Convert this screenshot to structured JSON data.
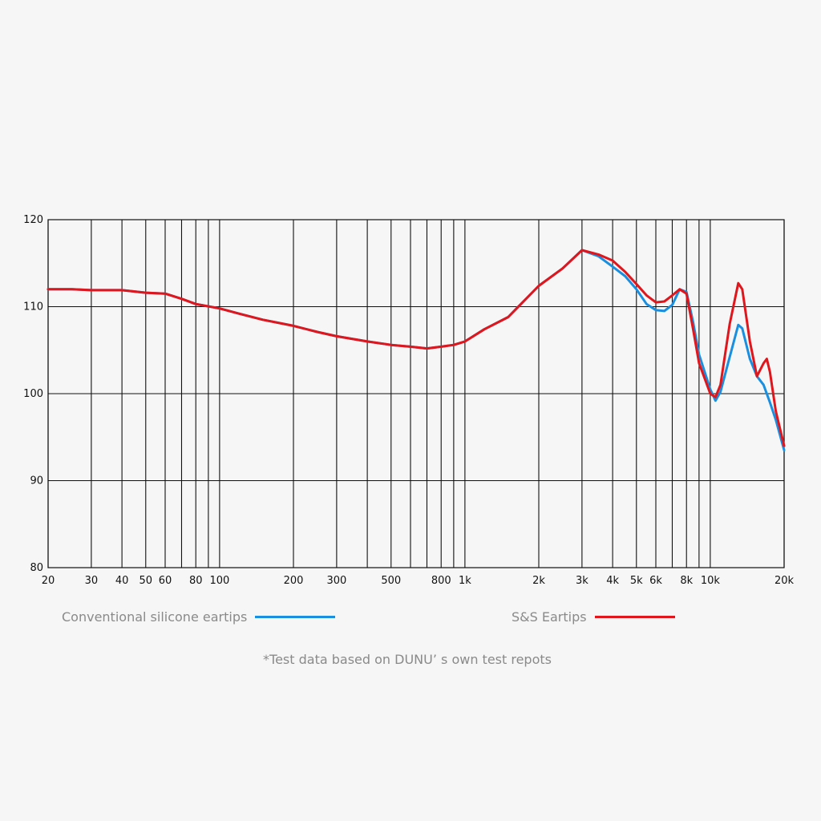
{
  "chart_data": {
    "type": "line",
    "x_scale": "log",
    "xlim": [
      20,
      20000
    ],
    "ylim": [
      80,
      120
    ],
    "grid": true,
    "y_ticks": [
      80,
      90,
      100,
      110,
      120
    ],
    "x_gridlines": [
      20,
      30,
      40,
      50,
      60,
      70,
      80,
      90,
      100,
      200,
      300,
      400,
      500,
      600,
      700,
      800,
      900,
      1000,
      2000,
      3000,
      4000,
      5000,
      6000,
      7000,
      8000,
      9000,
      10000,
      20000
    ],
    "x_tick_labels": [
      {
        "x": 20,
        "label": "20"
      },
      {
        "x": 30,
        "label": "30"
      },
      {
        "x": 40,
        "label": "40"
      },
      {
        "x": 50,
        "label": "50"
      },
      {
        "x": 60,
        "label": "60"
      },
      {
        "x": 80,
        "label": "80"
      },
      {
        "x": 100,
        "label": "100"
      },
      {
        "x": 200,
        "label": "200"
      },
      {
        "x": 300,
        "label": "300"
      },
      {
        "x": 500,
        "label": "500"
      },
      {
        "x": 800,
        "label": "800"
      },
      {
        "x": 1000,
        "label": "1k"
      },
      {
        "x": 2000,
        "label": "2k"
      },
      {
        "x": 3000,
        "label": "3k"
      },
      {
        "x": 4000,
        "label": "4k"
      },
      {
        "x": 5000,
        "label": "5k"
      },
      {
        "x": 6000,
        "label": "6k"
      },
      {
        "x": 8000,
        "label": "8k"
      },
      {
        "x": 10000,
        "label": "10k"
      },
      {
        "x": 20000,
        "label": "20k"
      }
    ],
    "series": [
      {
        "name": "Conventional silicone eartips",
        "color": "#1a8fe0",
        "points": [
          [
            20,
            112
          ],
          [
            25,
            112
          ],
          [
            30,
            111.9
          ],
          [
            40,
            111.9
          ],
          [
            50,
            111.6
          ],
          [
            60,
            111.5
          ],
          [
            70,
            110.9
          ],
          [
            80,
            110.3
          ],
          [
            100,
            109.8
          ],
          [
            120,
            109.2
          ],
          [
            150,
            108.5
          ],
          [
            200,
            107.8
          ],
          [
            250,
            107.1
          ],
          [
            300,
            106.6
          ],
          [
            400,
            106
          ],
          [
            500,
            105.6
          ],
          [
            600,
            105.4
          ],
          [
            700,
            105.2
          ],
          [
            800,
            105.4
          ],
          [
            900,
            105.6
          ],
          [
            1000,
            106
          ],
          [
            1200,
            107.4
          ],
          [
            1500,
            108.8
          ],
          [
            2000,
            112.4
          ],
          [
            2500,
            114.4
          ],
          [
            3000,
            116.5
          ],
          [
            3500,
            115.8
          ],
          [
            4000,
            114.6
          ],
          [
            4500,
            113.5
          ],
          [
            5000,
            112
          ],
          [
            5500,
            110.3
          ],
          [
            6000,
            109.6
          ],
          [
            6500,
            109.5
          ],
          [
            7000,
            110.2
          ],
          [
            7500,
            112
          ],
          [
            8000,
            111.7
          ],
          [
            8500,
            108.3
          ],
          [
            9000,
            104.5
          ],
          [
            10000,
            100.5
          ],
          [
            10500,
            99.2
          ],
          [
            11000,
            100.2
          ],
          [
            12000,
            104.2
          ],
          [
            13000,
            107.9
          ],
          [
            13500,
            107.5
          ],
          [
            14500,
            104
          ],
          [
            15500,
            102
          ],
          [
            16500,
            101
          ],
          [
            17500,
            99
          ],
          [
            18500,
            97
          ],
          [
            20000,
            93.5
          ]
        ]
      },
      {
        "name": "S&S Eartips",
        "color": "#e0161c",
        "points": [
          [
            20,
            112
          ],
          [
            25,
            112
          ],
          [
            30,
            111.9
          ],
          [
            40,
            111.9
          ],
          [
            50,
            111.6
          ],
          [
            60,
            111.5
          ],
          [
            70,
            110.9
          ],
          [
            80,
            110.3
          ],
          [
            100,
            109.8
          ],
          [
            120,
            109.2
          ],
          [
            150,
            108.5
          ],
          [
            200,
            107.8
          ],
          [
            250,
            107.1
          ],
          [
            300,
            106.6
          ],
          [
            400,
            106
          ],
          [
            500,
            105.6
          ],
          [
            600,
            105.4
          ],
          [
            700,
            105.2
          ],
          [
            800,
            105.4
          ],
          [
            900,
            105.6
          ],
          [
            1000,
            106
          ],
          [
            1200,
            107.4
          ],
          [
            1500,
            108.8
          ],
          [
            2000,
            112.4
          ],
          [
            2500,
            114.4
          ],
          [
            3000,
            116.5
          ],
          [
            3500,
            116
          ],
          [
            4000,
            115.3
          ],
          [
            4500,
            114
          ],
          [
            5000,
            112.6
          ],
          [
            5500,
            111.3
          ],
          [
            6000,
            110.5
          ],
          [
            6500,
            110.6
          ],
          [
            7000,
            111.3
          ],
          [
            7500,
            112
          ],
          [
            8000,
            111.5
          ],
          [
            8500,
            107.5
          ],
          [
            9000,
            103.5
          ],
          [
            10000,
            100
          ],
          [
            10500,
            99.6
          ],
          [
            11000,
            101
          ],
          [
            12000,
            108
          ],
          [
            13000,
            112.7
          ],
          [
            13500,
            112
          ],
          [
            14500,
            106
          ],
          [
            15500,
            102
          ],
          [
            16500,
            103.5
          ],
          [
            17000,
            104
          ],
          [
            17500,
            102.5
          ],
          [
            18500,
            98
          ],
          [
            20000,
            94
          ]
        ]
      }
    ]
  },
  "legend": {
    "series_a_label": "Conventional silicone eartips",
    "series_b_label": "S&S Eartips"
  },
  "footnote": "*Test data based on DUNU’ s own test repots"
}
